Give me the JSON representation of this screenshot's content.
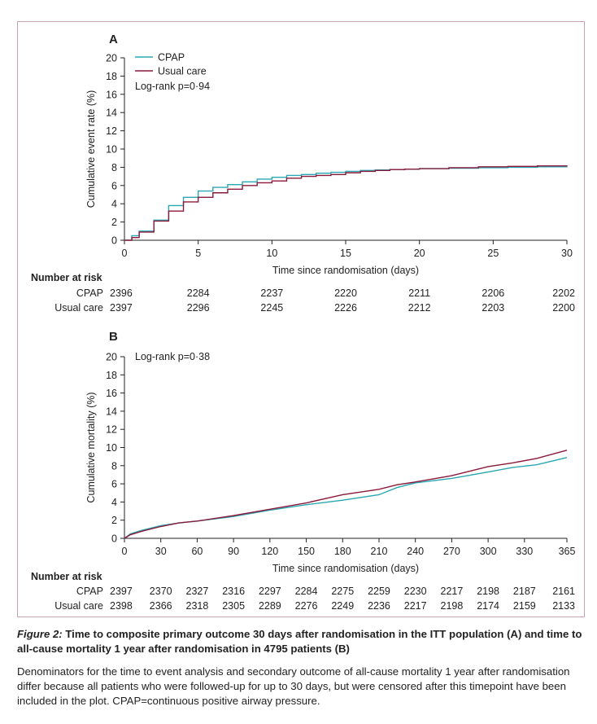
{
  "colors": {
    "cpap": "#2aa7b3",
    "usual_care": "#8b1a3a",
    "frame": "#c9a4ad",
    "text": "#222222"
  },
  "chart_data": [
    {
      "type": "line",
      "step": true,
      "panel_label": "A",
      "xlabel": "Time since randomisation (days)",
      "ylabel": "Cumulative event rate (%)",
      "xlim": [
        0,
        30
      ],
      "ylim": [
        0,
        20
      ],
      "xticks": [
        0,
        5,
        10,
        15,
        20,
        25,
        30
      ],
      "yticks": [
        0,
        2,
        4,
        6,
        8,
        10,
        12,
        14,
        16,
        18,
        20
      ],
      "legend": [
        "CPAP",
        "Usual care"
      ],
      "annotation": "Log-rank p=0·94",
      "series": [
        {
          "name": "CPAP",
          "color": "#2aa7b3",
          "x": [
            0,
            0.5,
            1,
            2,
            3,
            4,
            5,
            6,
            7,
            8,
            9,
            10,
            11,
            12,
            13,
            14,
            15,
            16,
            17,
            18,
            19,
            20,
            22,
            24,
            26,
            28,
            30
          ],
          "y": [
            0,
            0.5,
            1.0,
            2.2,
            3.8,
            4.7,
            5.4,
            5.8,
            6.1,
            6.4,
            6.7,
            6.9,
            7.1,
            7.2,
            7.35,
            7.45,
            7.55,
            7.65,
            7.7,
            7.75,
            7.8,
            7.85,
            7.9,
            7.95,
            8.0,
            8.05,
            8.1
          ]
        },
        {
          "name": "Usual care",
          "color": "#8b1a3a",
          "x": [
            0,
            0.5,
            1,
            2,
            3,
            4,
            5,
            6,
            7,
            8,
            9,
            10,
            11,
            12,
            13,
            14,
            15,
            16,
            17,
            18,
            19,
            20,
            22,
            24,
            26,
            28,
            30
          ],
          "y": [
            0,
            0.3,
            0.9,
            2.1,
            3.2,
            4.2,
            4.7,
            5.2,
            5.6,
            6.0,
            6.3,
            6.5,
            6.8,
            7.0,
            7.1,
            7.2,
            7.4,
            7.55,
            7.65,
            7.75,
            7.8,
            7.85,
            7.95,
            8.05,
            8.1,
            8.15,
            8.2
          ]
        }
      ],
      "risk_table": {
        "header": "Number at risk",
        "times": [
          0,
          5,
          10,
          15,
          20,
          25,
          30
        ],
        "rows": [
          {
            "label": "CPAP",
            "values": [
              "2396",
              "2284",
              "2237",
              "2220",
              "2211",
              "2206",
              "2202"
            ]
          },
          {
            "label": "Usual care",
            "values": [
              "2397",
              "2296",
              "2245",
              "2226",
              "2212",
              "2203",
              "2200"
            ]
          }
        ]
      }
    },
    {
      "type": "line",
      "step": false,
      "panel_label": "B",
      "xlabel": "Time since randomisation (days)",
      "ylabel": "Cumulative mortality (%)",
      "xlim": [
        0,
        365
      ],
      "ylim": [
        0,
        20
      ],
      "xticks": [
        0,
        30,
        60,
        90,
        120,
        150,
        180,
        210,
        240,
        270,
        300,
        330,
        365
      ],
      "yticks": [
        0,
        2,
        4,
        6,
        8,
        10,
        12,
        14,
        16,
        18,
        20
      ],
      "annotation": "Log-rank p=0·38",
      "series": [
        {
          "name": "CPAP",
          "color": "#2aa7b3",
          "x": [
            0,
            5,
            15,
            30,
            45,
            60,
            90,
            120,
            150,
            180,
            210,
            225,
            240,
            270,
            300,
            320,
            340,
            365
          ],
          "y": [
            0,
            0.5,
            0.9,
            1.4,
            1.7,
            1.9,
            2.4,
            3.1,
            3.7,
            4.2,
            4.8,
            5.6,
            6.1,
            6.6,
            7.3,
            7.8,
            8.1,
            8.9
          ]
        },
        {
          "name": "Usual care",
          "color": "#8b1a3a",
          "x": [
            0,
            5,
            15,
            30,
            45,
            60,
            90,
            120,
            150,
            180,
            210,
            225,
            240,
            270,
            300,
            320,
            340,
            365
          ],
          "y": [
            0,
            0.4,
            0.8,
            1.3,
            1.7,
            1.9,
            2.5,
            3.2,
            3.9,
            4.8,
            5.4,
            5.9,
            6.2,
            6.9,
            7.9,
            8.3,
            8.8,
            9.7
          ]
        }
      ],
      "risk_table": {
        "header": "Number at risk",
        "times": [
          0,
          30,
          60,
          90,
          120,
          150,
          180,
          210,
          240,
          270,
          300,
          330,
          365
        ],
        "rows": [
          {
            "label": "CPAP",
            "values": [
              "2397",
              "2370",
              "2327",
              "2316",
              "2297",
              "2284",
              "2275",
              "2259",
              "2230",
              "2217",
              "2198",
              "2187",
              "2161"
            ]
          },
          {
            "label": "Usual care",
            "values": [
              "2398",
              "2366",
              "2318",
              "2305",
              "2289",
              "2276",
              "2249",
              "2236",
              "2217",
              "2198",
              "2174",
              "2159",
              "2133"
            ]
          }
        ]
      }
    }
  ],
  "caption": {
    "figure_label": "Figure 2:",
    "title": " Time to composite primary outcome 30 days after randomisation in the ITT population (A) and time to all-cause mortality 1 year after randomisation in 4795 patients (B)",
    "body": "Denominators for the time to event analysis and secondary outcome of all-cause mortality 1 year after randomisation differ because all patients who were followed-up for up to 30 days, but were censored after this timepoint have been included in the plot. CPAP=continuous positive airway pressure."
  }
}
